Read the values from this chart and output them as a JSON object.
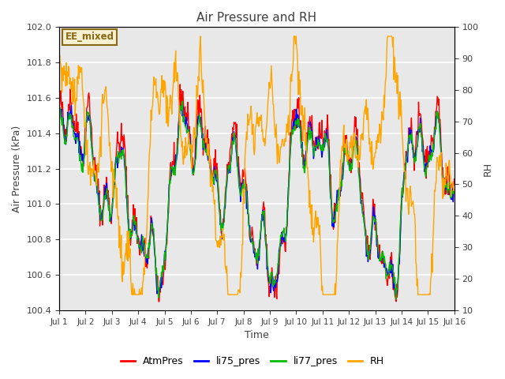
{
  "title": "Air Pressure and RH",
  "xlabel": "Time",
  "ylabel_left": "Air Pressure (kPa)",
  "ylabel_right": "RH",
  "ylim_left": [
    100.4,
    102.0
  ],
  "ylim_right": [
    10,
    100
  ],
  "yticks_left": [
    100.4,
    100.6,
    100.8,
    101.0,
    101.2,
    101.4,
    101.6,
    101.8,
    102.0
  ],
  "yticks_right": [
    10,
    20,
    30,
    40,
    50,
    60,
    70,
    80,
    90,
    100
  ],
  "xtick_labels": [
    "Jul 1",
    "Jul 2",
    "Jul 3",
    "Jul 4",
    "Jul 5",
    "Jul 6",
    "Jul 7",
    "Jul 8",
    "Jul 9",
    "Jul 10",
    "Jul 11",
    "Jul 12",
    "Jul 13",
    "Jul 14",
    "Jul 15",
    "Jul 16"
  ],
  "colors": {
    "AtmPres": "#ff0000",
    "li75_pres": "#0000ff",
    "li77_pres": "#00bb00",
    "RH": "#ffa500"
  },
  "annotation_text": "EE_mixed",
  "annotation_color": "#8b6914",
  "annotation_bg": "#f5f0d0",
  "plot_bg_color": "#e8e8e8",
  "grid_color": "#ffffff",
  "title_color": "#404040",
  "axis_label_color": "#404040",
  "tick_label_color": "#404040",
  "n_points": 720,
  "seed": 42
}
